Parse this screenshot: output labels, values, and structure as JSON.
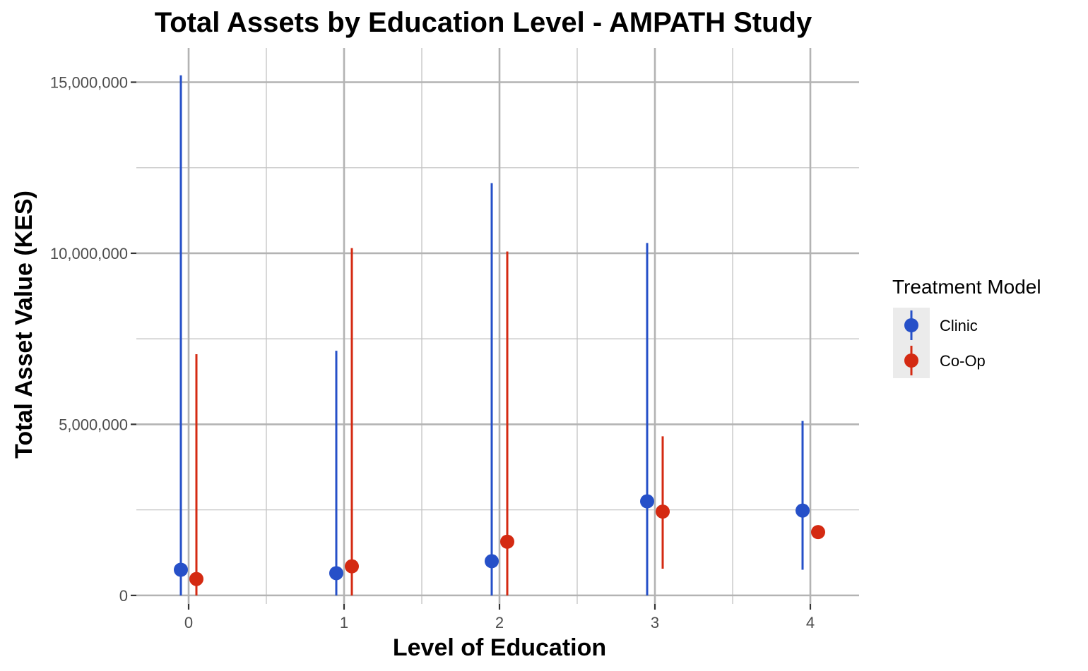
{
  "chart_data": {
    "type": "scatter",
    "title": "Total Assets by Education Level - AMPATH Study",
    "xlabel": "Level of Education",
    "ylabel": "Total Asset Value (KES)",
    "categories": [
      "0",
      "1",
      "2",
      "3",
      "4"
    ],
    "y_ticks": [
      "0",
      "5,000,000",
      "10,000,000",
      "15,000,000"
    ],
    "y_tick_values": [
      0,
      5000000,
      10000000,
      15000000
    ],
    "ylim": [
      -250000,
      16000000
    ],
    "grid": true,
    "legend": {
      "title": "Treatment Model",
      "placement": "right"
    },
    "series": [
      {
        "name": "Clinic",
        "color": "#2650c8",
        "points": [
          {
            "x": "0",
            "y": 750000,
            "low": 0,
            "high": 15200000
          },
          {
            "x": "1",
            "y": 650000,
            "low": 0,
            "high": 7150000
          },
          {
            "x": "2",
            "y": 1000000,
            "low": 0,
            "high": 12050000
          },
          {
            "x": "3",
            "y": 2750000,
            "low": 0,
            "high": 10300000
          },
          {
            "x": "4",
            "y": 2480000,
            "low": 750000,
            "high": 5100000
          }
        ]
      },
      {
        "name": "Co-Op",
        "color": "#d42a12",
        "points": [
          {
            "x": "0",
            "y": 480000,
            "low": 0,
            "high": 7050000
          },
          {
            "x": "1",
            "y": 850000,
            "low": 0,
            "high": 10150000
          },
          {
            "x": "2",
            "y": 1570000,
            "low": 0,
            "high": 10050000
          },
          {
            "x": "3",
            "y": 2450000,
            "low": 780000,
            "high": 4650000
          },
          {
            "x": "4",
            "y": 1850000,
            "low": null,
            "high": null
          }
        ]
      }
    ]
  }
}
